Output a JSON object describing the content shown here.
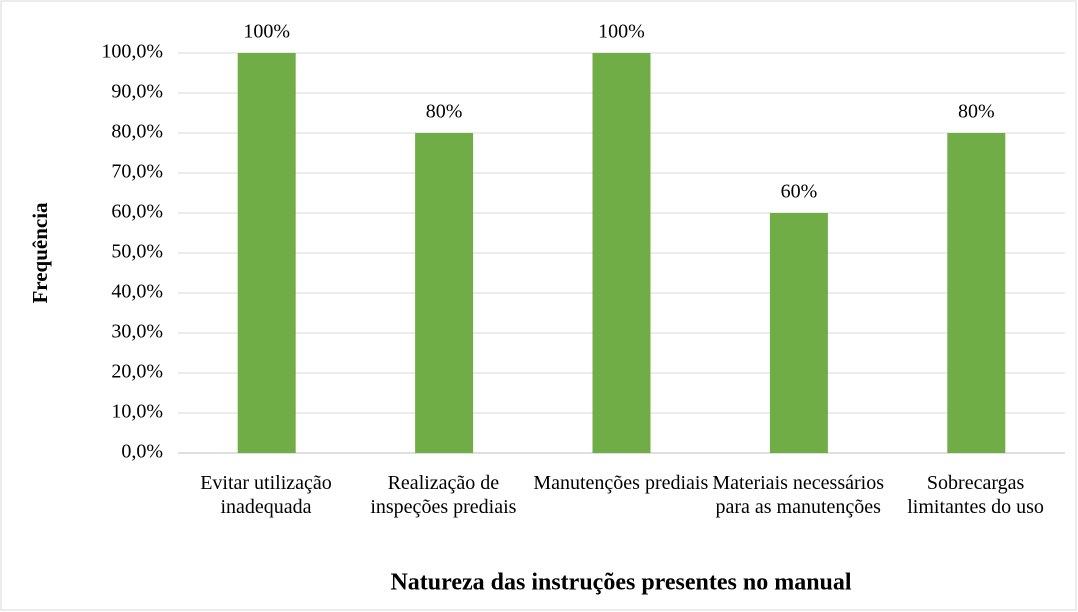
{
  "chart_data": {
    "type": "bar",
    "x_label": "Natureza das instruções presentes no manual",
    "y_label": "Frequência",
    "categories": [
      "Evitar utilização inadequada",
      "Realização de inspeções prediais",
      "Manutenções prediais",
      "Materiais necessários para as manutenções",
      "Sobrecargas limitantes do uso"
    ],
    "values": [
      100,
      80,
      100,
      60,
      80
    ],
    "value_labels": [
      "100%",
      "80%",
      "100%",
      "60%",
      "80%"
    ],
    "color": "#70ad47",
    "ylim": [
      0,
      100
    ],
    "yticks": [
      {
        "value": 0,
        "label": "0,0%"
      },
      {
        "value": 10,
        "label": "10,0%"
      },
      {
        "value": 20,
        "label": "20,0%"
      },
      {
        "value": 30,
        "label": "30,0%"
      },
      {
        "value": 40,
        "label": "40,0%"
      },
      {
        "value": 50,
        "label": "50,0%"
      },
      {
        "value": 60,
        "label": "60,0%"
      },
      {
        "value": 70,
        "label": "70,0%"
      },
      {
        "value": 80,
        "label": "80,0%"
      },
      {
        "value": 90,
        "label": "90,0%"
      },
      {
        "value": 100,
        "label": "100,0%"
      }
    ],
    "grid": true
  }
}
